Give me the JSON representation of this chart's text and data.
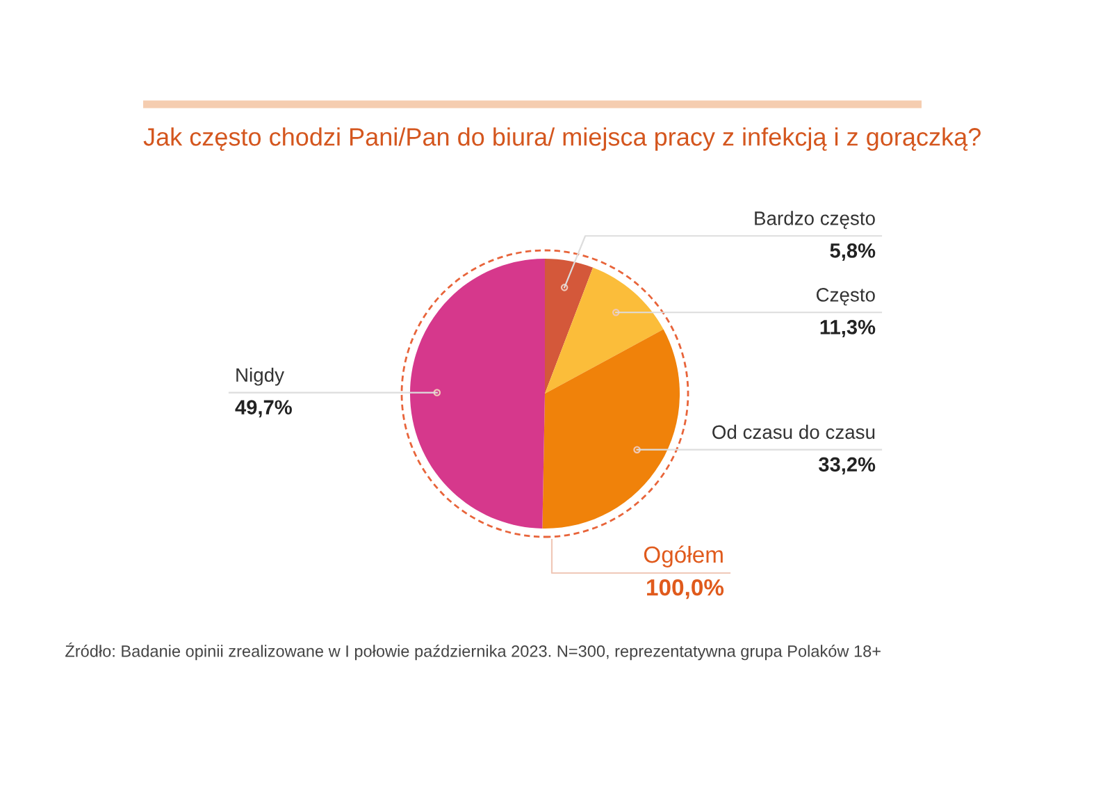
{
  "chart_data": {
    "type": "pie",
    "title": "Jak często chodzi Pani/Pan do biura/ miejsca pracy z infekcją i z gorączką?",
    "categories": [
      "Bardzo często",
      "Często",
      "Od czasu do czasu",
      "Nigdy"
    ],
    "values": [
      5.8,
      11.3,
      33.2,
      49.7
    ],
    "value_labels": [
      "5,8%",
      "11,3%",
      "33,2%",
      "49,7%"
    ],
    "colors": [
      "#d4583a",
      "#fbbd3a",
      "#f0820a",
      "#d6388c"
    ],
    "annotations": [
      "Ogółem",
      "100,0%",
      "Źródło: Badanie opinii zrealizowane w I połowie października 2023. N=300, reprezentatywna grupa Polaków 18+"
    ]
  }
}
